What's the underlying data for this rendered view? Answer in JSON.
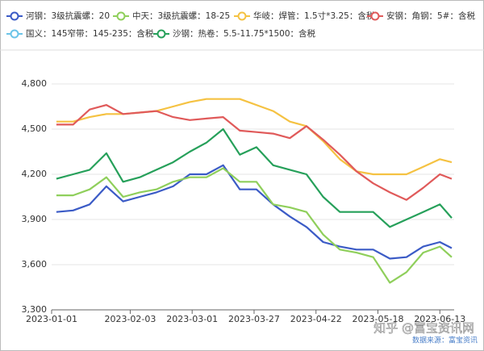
{
  "chart_data": {
    "type": "line",
    "x": [
      "2023-01-03",
      "2023-01-10",
      "2023-01-17",
      "2023-01-24",
      "2023-01-31",
      "2023-02-07",
      "2023-02-14",
      "2023-02-21",
      "2023-02-28",
      "2023-03-07",
      "2023-03-14",
      "2023-03-21",
      "2023-03-28",
      "2023-04-04",
      "2023-04-11",
      "2023-04-18",
      "2023-04-25",
      "2023-05-02",
      "2023-05-09",
      "2023-05-16",
      "2023-05-23",
      "2023-05-30",
      "2023-06-06",
      "2023-06-13",
      "2023-06-18"
    ],
    "series": [
      {
        "name": "河钢：3级抗震螺：20",
        "color": "#3b5bc6",
        "values": [
          3950,
          3960,
          4000,
          4120,
          4020,
          4050,
          4080,
          4120,
          4200,
          4200,
          4260,
          4100,
          4100,
          4000,
          3920,
          3850,
          3750,
          3720,
          3700,
          3700,
          3640,
          3650,
          3720,
          3750,
          3710
        ]
      },
      {
        "name": "中天：3级抗震螺：18-25",
        "color": "#8fcf5b",
        "values": [
          4060,
          4060,
          4100,
          4180,
          4050,
          4080,
          4100,
          4150,
          4180,
          4180,
          4240,
          4150,
          4150,
          4000,
          3980,
          3950,
          3800,
          3700,
          3680,
          3650,
          3480,
          3550,
          3680,
          3720,
          3650
        ]
      },
      {
        "name": "华岐：焊管：1.5寸*3.25：含税",
        "color": "#f5c242",
        "values": [
          4550,
          4550,
          4580,
          4600,
          4600,
          4610,
          4620,
          4650,
          4680,
          4700,
          4700,
          4700,
          4660,
          4620,
          4550,
          4520,
          4420,
          4300,
          4220,
          4200,
          4200,
          4200,
          4250,
          4300,
          4280
        ]
      },
      {
        "name": "安钢：角钢：5#：含税",
        "color": "#e05a5a",
        "values": [
          4530,
          4530,
          4630,
          4660,
          4600,
          4610,
          4620,
          4580,
          4560,
          4570,
          4580,
          4490,
          4480,
          4470,
          4440,
          4520,
          4430,
          4330,
          4220,
          4140,
          4080,
          4030,
          4110,
          4200,
          4170
        ]
      },
      {
        "name": "国义：145窄带：145-235：含税",
        "color": "#6bc4e8",
        "values": [
          null,
          null,
          null,
          null,
          null,
          null,
          null,
          null,
          null,
          null,
          null,
          null,
          null,
          null,
          null,
          null,
          null,
          null,
          null,
          null,
          null,
          null,
          null,
          null,
          null
        ]
      },
      {
        "name": "沙钢：热卷：5.5-11.75*1500：含税",
        "color": "#26a05a",
        "values": [
          4170,
          4200,
          4230,
          4340,
          4150,
          4180,
          4230,
          4280,
          4350,
          4410,
          4500,
          4330,
          4380,
          4260,
          4230,
          4200,
          4050,
          3950,
          3950,
          3950,
          3850,
          3900,
          3950,
          4000,
          3910
        ]
      }
    ],
    "xlim": [
      "2023-01-01",
      "2023-06-19"
    ],
    "xticks": [
      "2023-01-01",
      "2023-02-03",
      "2023-03-01",
      "2023-03-27",
      "2023-04-22",
      "2023-05-18",
      "2023-06-13"
    ],
    "ylim": [
      3300,
      4800
    ],
    "yticks": [
      {
        "value": 3300,
        "label": "3,300"
      },
      {
        "value": 3600,
        "label": "3,600"
      },
      {
        "value": 3900,
        "label": "3,900"
      },
      {
        "value": 4200,
        "label": "4,200"
      },
      {
        "value": 4500,
        "label": "4,500"
      },
      {
        "value": 4800,
        "label": "4,800"
      }
    ],
    "grid": true,
    "source": "数据来源：富宝资讯",
    "watermark": "知乎 @富宝资讯网"
  }
}
